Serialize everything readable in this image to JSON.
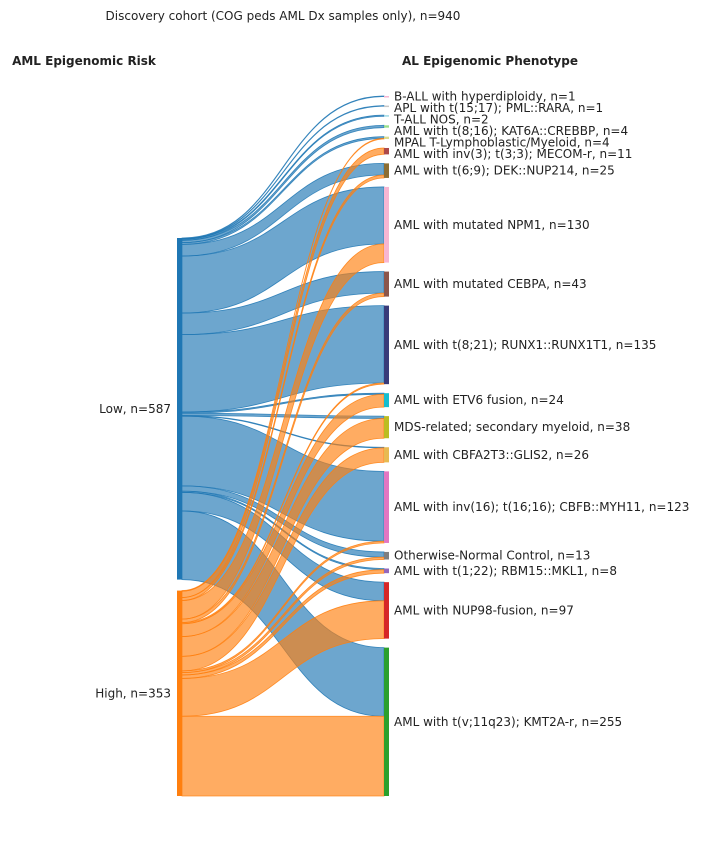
{
  "chart_data": {
    "type": "sankey",
    "title": "Discovery cohort (COG peds AML Dx samples only), n=940",
    "left_header": "AML Epigenomic Risk",
    "right_header": "AL Epigenomic Phenotype",
    "colors": {
      "Low": "#1f77b4",
      "High": "#ff7f0e"
    },
    "sources": [
      {
        "name": "Low",
        "label": "Low, n=587",
        "color": "#1f77b4"
      },
      {
        "name": "High",
        "label": "High, n=353",
        "color": "#ff7f0e"
      }
    ],
    "targets": [
      {
        "name": "B-ALL with hyperdiploidy",
        "label": "B-ALL with hyperdiploidy, n=1",
        "color": "#f7b6d2"
      },
      {
        "name": "APL with t(15;17); PML::RARA",
        "label": "APL with t(15;17); PML::RARA, n=1",
        "color": "#c7c7c7"
      },
      {
        "name": "T-ALL NOS",
        "label": "T-ALL NOS, n=2",
        "color": "#9edae5"
      },
      {
        "name": "AML with t(8;16); KAT6A::CREBBP",
        "label": "AML with t(8;16); KAT6A::CREBBP, n=4",
        "color": "#98df8a"
      },
      {
        "name": "MPAL T-Lymphoblastic/Myeloid",
        "label": "MPAL T-Lymphoblastic/Myeloid, n=4",
        "color": "#dbdb8d"
      },
      {
        "name": "AML with inv(3); t(3;3); MECOM-r",
        "label": "AML with inv(3); t(3;3); MECOM-r, n=11",
        "color": "#ad494a"
      },
      {
        "name": "AML with t(6;9); DEK::NUP214",
        "label": "AML with t(6;9); DEK::NUP214, n=25",
        "color": "#8c6d31"
      },
      {
        "name": "AML with mutated NPM1",
        "label": "AML with mutated NPM1, n=130",
        "color": "#f7b6d2"
      },
      {
        "name": "AML with mutated CEBPA",
        "label": "AML with mutated CEBPA, n=43",
        "color": "#8c564b"
      },
      {
        "name": "AML with t(8;21); RUNX1::RUNX1T1",
        "label": "AML with t(8;21); RUNX1::RUNX1T1, n=135",
        "color": "#393b79"
      },
      {
        "name": "AML with ETV6 fusion",
        "label": "AML with ETV6 fusion, n=24",
        "color": "#17becf"
      },
      {
        "name": "MDS-related; secondary myeloid",
        "label": "MDS-related; secondary myeloid, n=38",
        "color": "#bcbd22"
      },
      {
        "name": "AML with CBFA2T3::GLIS2",
        "label": "AML with CBFA2T3::GLIS2, n=26",
        "color": "#e7ba52"
      },
      {
        "name": "AML with inv(16); t(16;16); CBFB::MYH11",
        "label": "AML with inv(16); t(16;16); CBFB::MYH11, n=123",
        "color": "#e377c2"
      },
      {
        "name": "Otherwise-Normal Control",
        "label": "Otherwise-Normal Control, n=13",
        "color": "#7f7f7f"
      },
      {
        "name": "AML with t(1;22); RBM15::MKL1",
        "label": "AML with t(1;22); RBM15::MKL1, n=8",
        "color": "#9467bd"
      },
      {
        "name": "AML with NUP98-fusion",
        "label": "AML with NUP98-fusion, n=97",
        "color": "#d62728"
      },
      {
        "name": "AML with t(v;11q23); KMT2A-r",
        "label": "AML with t(v;11q23); KMT2A-r, n=255",
        "color": "#2ca02c"
      }
    ],
    "flows": [
      {
        "source": "Low",
        "target": "B-ALL with hyperdiploidy",
        "value": 1
      },
      {
        "source": "Low",
        "target": "APL with t(15;17); PML::RARA",
        "value": 1
      },
      {
        "source": "Low",
        "target": "T-ALL NOS",
        "value": 2
      },
      {
        "source": "Low",
        "target": "AML with t(8;16); KAT6A::CREBBP",
        "value": 4
      },
      {
        "source": "Low",
        "target": "MPAL T-Lymphoblastic/Myeloid",
        "value": 3
      },
      {
        "source": "Low",
        "target": "AML with t(6;9); DEK::NUP214",
        "value": 20
      },
      {
        "source": "Low",
        "target": "AML with mutated NPM1",
        "value": 98
      },
      {
        "source": "Low",
        "target": "AML with mutated CEBPA",
        "value": 37
      },
      {
        "source": "Low",
        "target": "AML with t(8;21); RUNX1::RUNX1T1",
        "value": 133
      },
      {
        "source": "Low",
        "target": "AML with ETV6 fusion",
        "value": 2
      },
      {
        "source": "Low",
        "target": "MDS-related; secondary myeloid",
        "value": 4
      },
      {
        "source": "Low",
        "target": "AML with CBFA2T3::GLIS2",
        "value": 1
      },
      {
        "source": "Low",
        "target": "AML with inv(16); t(16;16); CBFB::MYH11",
        "value": 120
      },
      {
        "source": "Low",
        "target": "Otherwise-Normal Control",
        "value": 9
      },
      {
        "source": "Low",
        "target": "AML with t(1;22); RBM15::MKL1",
        "value": 2
      },
      {
        "source": "Low",
        "target": "AML with NUP98-fusion",
        "value": 32
      },
      {
        "source": "Low",
        "target": "AML with t(v;11q23); KMT2A-r",
        "value": 118
      },
      {
        "source": "High",
        "target": "MPAL T-Lymphoblastic/Myeloid",
        "value": 1
      },
      {
        "source": "High",
        "target": "AML with inv(3); t(3;3); MECOM-r",
        "value": 11
      },
      {
        "source": "High",
        "target": "AML with t(6;9); DEK::NUP214",
        "value": 5
      },
      {
        "source": "High",
        "target": "AML with mutated NPM1",
        "value": 32
      },
      {
        "source": "High",
        "target": "AML with mutated CEBPA",
        "value": 6
      },
      {
        "source": "High",
        "target": "AML with t(8;21); RUNX1::RUNX1T1",
        "value": 2
      },
      {
        "source": "High",
        "target": "AML with ETV6 fusion",
        "value": 22
      },
      {
        "source": "High",
        "target": "MDS-related; secondary myeloid",
        "value": 34
      },
      {
        "source": "High",
        "target": "AML with CBFA2T3::GLIS2",
        "value": 25
      },
      {
        "source": "High",
        "target": "AML with inv(16); t(16;16); CBFB::MYH11",
        "value": 3
      },
      {
        "source": "High",
        "target": "Otherwise-Normal Control",
        "value": 4
      },
      {
        "source": "High",
        "target": "AML with t(1;22); RBM15::MKL1",
        "value": 6
      },
      {
        "source": "High",
        "target": "AML with NUP98-fusion",
        "value": 65
      },
      {
        "source": "High",
        "target": "AML with t(v;11q23); KMT2A-r",
        "value": 137
      }
    ]
  }
}
